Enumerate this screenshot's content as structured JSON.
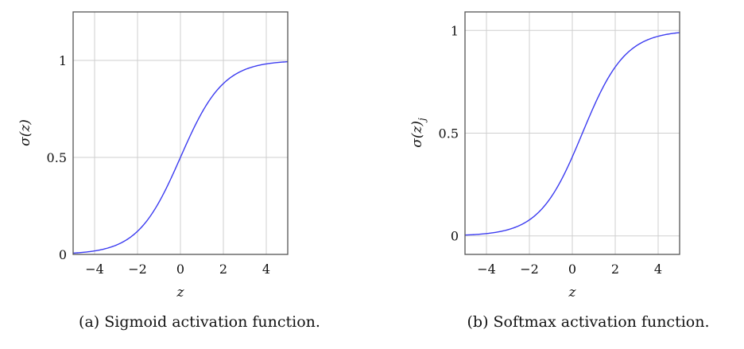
{
  "figure": {
    "panels": [
      {
        "id": "a",
        "caption": "(a) Sigmoid activation function.",
        "xlabel": "z",
        "ylabel_main": "σ(z)",
        "ylabel_sub": "",
        "xticks": [
          "−4",
          "−2",
          "0",
          "2",
          "4"
        ],
        "yticks": [
          "0",
          "0.5",
          "1"
        ]
      },
      {
        "id": "b",
        "caption": "(b) Softmax activation function.",
        "xlabel": "z",
        "ylabel_main": "σ(z)",
        "ylabel_sub": "j",
        "xticks": [
          "−4",
          "−2",
          "0",
          "2",
          "4"
        ],
        "yticks": [
          "0",
          "0.5",
          "1"
        ]
      }
    ],
    "colors": {
      "curve": "#3b3bf0",
      "grid": "#cfcfcf",
      "frame": "#555555"
    }
  },
  "chart_data": [
    {
      "type": "line",
      "title": "(a) Sigmoid activation function.",
      "xlabel": "z",
      "ylabel": "σ(z)",
      "xlim": [
        -5,
        5
      ],
      "ylim": [
        0,
        1.25
      ],
      "grid": true,
      "xticks": [
        -4,
        -2,
        0,
        2,
        4
      ],
      "yticks": [
        0,
        0.5,
        1
      ],
      "series": [
        {
          "name": "sigmoid",
          "function": "1/(1+exp(-z))",
          "x": [
            -5,
            -4,
            -3,
            -2,
            -1,
            0,
            1,
            2,
            3,
            4,
            5
          ],
          "y": [
            0.007,
            0.018,
            0.047,
            0.119,
            0.269,
            0.5,
            0.731,
            0.881,
            0.953,
            0.982,
            0.993
          ]
        }
      ]
    },
    {
      "type": "line",
      "title": "(b) Softmax activation function.",
      "xlabel": "z",
      "ylabel": "σ(z)_j",
      "xlim": [
        -5,
        5
      ],
      "ylim": [
        -0.09,
        1.09
      ],
      "grid": true,
      "xticks": [
        -4,
        -2,
        0,
        2,
        4
      ],
      "yticks": [
        0,
        0.5,
        1
      ],
      "series": [
        {
          "name": "softmax",
          "function": "1/(1+exp(-(z-0.47)))",
          "x": [
            -5,
            -4,
            -3,
            -2,
            -1,
            0,
            1,
            2,
            3,
            4,
            5
          ],
          "y": [
            0.004,
            0.011,
            0.03,
            0.078,
            0.187,
            0.385,
            0.63,
            0.822,
            0.926,
            0.972,
            0.989
          ]
        }
      ]
    }
  ]
}
